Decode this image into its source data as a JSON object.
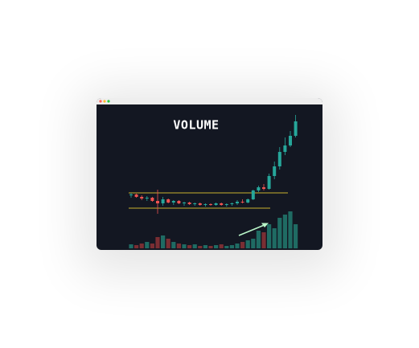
{
  "chart_data": {
    "type": "candlestick",
    "title": "VOLUME",
    "open": [
      68,
      69,
      66,
      64,
      65,
      61,
      58,
      63,
      59,
      61,
      58,
      59,
      57,
      58,
      56,
      57,
      56,
      58,
      56,
      57,
      58,
      60,
      59,
      63,
      74,
      78,
      76,
      92,
      104,
      122,
      130,
      142
    ],
    "high": [
      71,
      70,
      68,
      67,
      66,
      75,
      66,
      64,
      62,
      62,
      60,
      60,
      59,
      59,
      58,
      58,
      59,
      59,
      58,
      59,
      62,
      63,
      64,
      75,
      80,
      82,
      95,
      110,
      128,
      140,
      148,
      168
    ],
    "low": [
      65,
      65,
      62,
      61,
      60,
      45,
      55,
      58,
      56,
      57,
      55,
      56,
      55,
      55,
      54,
      55,
      55,
      55,
      54,
      55,
      56,
      58,
      58,
      62,
      72,
      74,
      75,
      88,
      100,
      118,
      128,
      140
    ],
    "close": [
      69,
      66,
      64,
      65,
      61,
      58,
      63,
      59,
      61,
      58,
      59,
      57,
      58,
      56,
      57,
      56,
      58,
      56,
      57,
      58,
      60,
      59,
      63,
      74,
      78,
      76,
      92,
      104,
      122,
      130,
      142,
      160
    ],
    "volume": [
      5,
      4,
      6,
      8,
      6,
      14,
      16,
      12,
      8,
      6,
      5,
      4,
      5,
      3,
      4,
      3,
      4,
      5,
      3,
      4,
      6,
      8,
      10,
      12,
      22,
      20,
      30,
      25,
      38,
      42,
      46,
      30
    ],
    "ylim": [
      0,
      180
    ],
    "volume_ylim": [
      0,
      60
    ],
    "up_color": "#26a69a",
    "down_color": "#ef5350",
    "up_volume_color": "#1f6b63",
    "down_volume_color": "#7a2e33",
    "levels": [
      71,
      52
    ],
    "level_color": "#c9b22f"
  }
}
